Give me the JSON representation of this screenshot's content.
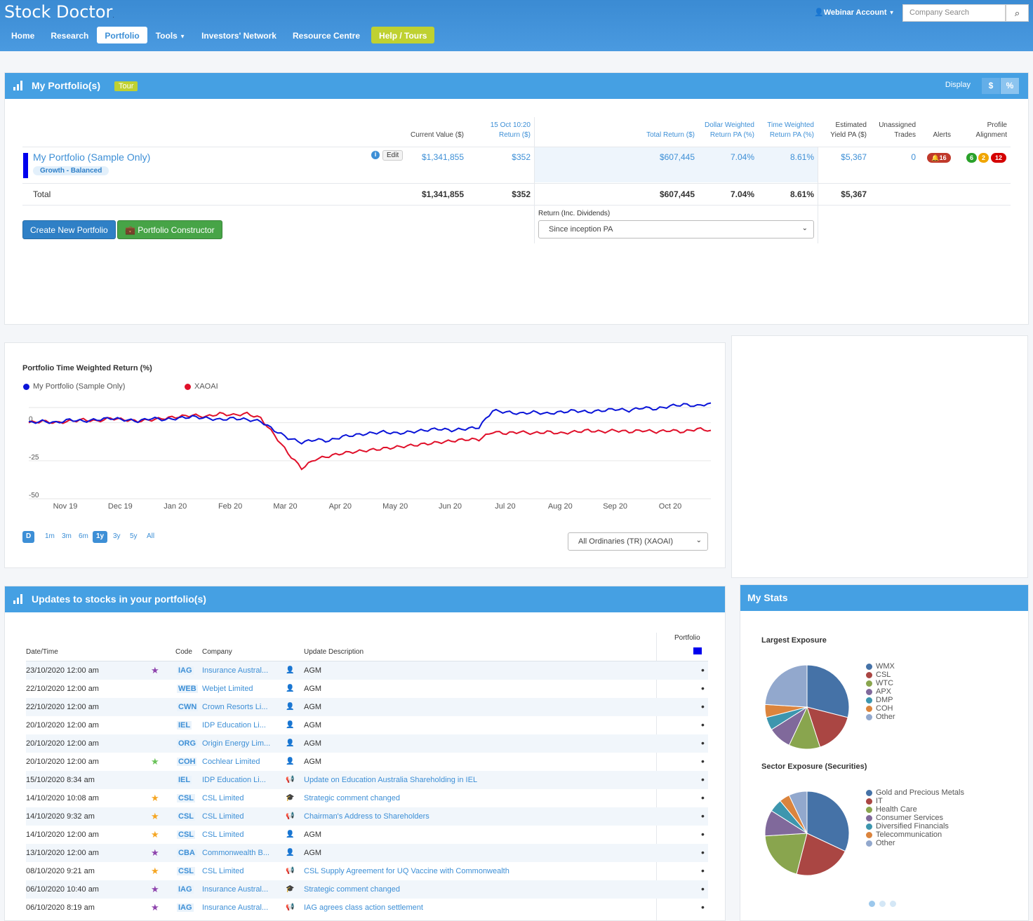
{
  "app": {
    "logo": "Stock Doctor",
    "logo_dot": "."
  },
  "nav": [
    {
      "label": "Home"
    },
    {
      "label": "Research"
    },
    {
      "label": "Portfolio",
      "active": true
    },
    {
      "label": "Tools"
    },
    {
      "label": "Investors' Network"
    },
    {
      "label": "Resource Centre"
    },
    {
      "label": "Help / Tours"
    }
  ],
  "account": "Webinar Account",
  "search": {
    "placeholder": "Company Search"
  },
  "portfolio_panel": {
    "title": "My Portfolio(s)",
    "tour": "Tour",
    "display_label": "Display",
    "display_options": [
      "$",
      "%"
    ],
    "headers": {
      "current_value": "Current Value ($)",
      "date_return_1": "15 Oct 10:20",
      "date_return_2": "Return ($)",
      "total_return": "Total Return ($)",
      "dw_1": "Dollar Weighted",
      "dw_2": "Return PA (%)",
      "tw_1": "Time Weighted",
      "tw_2": "Return PA (%)",
      "yield_1": "Estimated",
      "yield_2": "Yield PA ($)",
      "unassigned_1": "Unassigned",
      "unassigned_2": "Trades",
      "alerts": "Alerts",
      "profile_1": "Profile",
      "profile_2": "Alignment"
    },
    "row": {
      "name": "My Portfolio (Sample Only)",
      "tag": "Growth - Balanced",
      "edit": "Edit",
      "current_value": "$1,341,855",
      "day_return": "$352",
      "total_return": "$607,445",
      "dw": "7.04%",
      "tw": "8.61%",
      "yield": "$5,367",
      "unassigned": "0",
      "alerts": "16",
      "profile": [
        "6",
        "2",
        "12"
      ],
      "color": "#0000ee"
    },
    "total": {
      "label": "Total",
      "current_value": "$1,341,855",
      "day_return": "$352",
      "total_return": "$607,445",
      "dw": "7.04%",
      "tw": "8.61%",
      "yield": "$5,367"
    },
    "return_label": "Return (Inc. Dividends)",
    "return_select": "Since inception PA",
    "create_btn": "Create New Portfolio",
    "constructor_btn": "Portfolio Constructor"
  },
  "chart_panel": {
    "ranges": [
      "D",
      "1m",
      "3m",
      "6m",
      "1y",
      "3y",
      "5y",
      "All"
    ],
    "active_ranges": [
      "D",
      "1y"
    ],
    "benchmark_select": "All Ordinaries (TR) (XAOAI)"
  },
  "chart_data": {
    "type": "line",
    "title": "Portfolio Time Weighted Return (%)",
    "x_ticks": [
      "Nov 19",
      "Dec 19",
      "Jan 20",
      "Feb 20",
      "Mar 20",
      "Apr 20",
      "May 20",
      "Jun 20",
      "Jul 20",
      "Aug 20",
      "Sep 20",
      "Oct 20"
    ],
    "y_ticks": [
      "0",
      "-25",
      "-50"
    ],
    "ylim": [
      -50,
      10
    ],
    "series": [
      {
        "name": "My Portfolio (Sample Only)",
        "color": "#0a14d8",
        "values": [
          0,
          1,
          0,
          2,
          1,
          2,
          3,
          2,
          1,
          3,
          2,
          3,
          4,
          3,
          2,
          3,
          2,
          1,
          -5,
          -10,
          -13,
          -11,
          -12,
          -9,
          -8,
          -7,
          -6,
          -7,
          -6,
          -5,
          -4,
          -5,
          -4,
          -3,
          8,
          7,
          6,
          7,
          6,
          7,
          8,
          7,
          8,
          9,
          8,
          10,
          9,
          11,
          12,
          11,
          13
        ]
      },
      {
        "name": "XAOAI",
        "color": "#e0102a",
        "values": [
          0,
          1,
          0,
          1,
          2,
          1,
          3,
          2,
          1,
          2,
          3,
          4,
          5,
          4,
          6,
          5,
          6,
          3,
          -8,
          -20,
          -30,
          -24,
          -22,
          -20,
          -19,
          -18,
          -17,
          -16,
          -15,
          -14,
          -13,
          -12,
          -11,
          -11,
          -6,
          -7,
          -6,
          -7,
          -6,
          -7,
          -6,
          -5,
          -6,
          -5,
          -6,
          -5,
          -6,
          -5,
          -6,
          -4,
          -5
        ]
      }
    ]
  },
  "updates_panel": {
    "title": "Updates to stocks in your portfolio(s)",
    "headers": {
      "date": "Date/Time",
      "code": "Code",
      "company": "Company",
      "desc": "Update Description",
      "portfolio": "Portfolio"
    },
    "rows": [
      {
        "date": "23/10/2020 12:00 am",
        "star": "purple",
        "code": "IAG",
        "company": "Insurance Austral...",
        "icon": "person",
        "desc": "AGM",
        "desc_link": false
      },
      {
        "date": "22/10/2020 12:00 am",
        "star": "",
        "code": "WEB",
        "company": "Webjet Limited",
        "icon": "person",
        "desc": "AGM",
        "desc_link": false
      },
      {
        "date": "22/10/2020 12:00 am",
        "star": "",
        "code": "CWN",
        "company": "Crown Resorts Li...",
        "icon": "person",
        "desc": "AGM",
        "desc_link": false
      },
      {
        "date": "20/10/2020 12:00 am",
        "star": "",
        "code": "IEL",
        "company": "IDP Education Li...",
        "icon": "person",
        "desc": "AGM",
        "desc_link": false
      },
      {
        "date": "20/10/2020 12:00 am",
        "star": "",
        "code": "ORG",
        "company": "Origin Energy Lim...",
        "icon": "person",
        "desc": "AGM",
        "desc_link": false
      },
      {
        "date": "20/10/2020 12:00 am",
        "star": "green",
        "code": "COH",
        "company": "Cochlear Limited",
        "icon": "person",
        "desc": "AGM",
        "desc_link": false
      },
      {
        "date": "15/10/2020 8:34 am",
        "star": "",
        "code": "IEL",
        "company": "IDP Education Li...",
        "icon": "megaphone",
        "desc": "Update on Education Australia Shareholding in IEL",
        "desc_link": true
      },
      {
        "date": "14/10/2020 10:08 am",
        "star": "orange",
        "code": "CSL",
        "company": "CSL Limited",
        "icon": "cap",
        "desc": "Strategic comment changed",
        "desc_link": true
      },
      {
        "date": "14/10/2020 9:32 am",
        "star": "orange",
        "code": "CSL",
        "company": "CSL Limited",
        "icon": "megaphone",
        "desc": "Chairman's Address to Shareholders",
        "desc_link": true
      },
      {
        "date": "14/10/2020 12:00 am",
        "star": "orange",
        "code": "CSL",
        "company": "CSL Limited",
        "icon": "person",
        "desc": "AGM",
        "desc_link": false
      },
      {
        "date": "13/10/2020 12:00 am",
        "star": "purple",
        "code": "CBA",
        "company": "Commonwealth B...",
        "icon": "person",
        "desc": "AGM",
        "desc_link": false
      },
      {
        "date": "08/10/2020 9:21 am",
        "star": "orange",
        "code": "CSL",
        "company": "CSL Limited",
        "icon": "megaphone",
        "desc": "CSL Supply Agreement for UQ Vaccine with Commonwealth",
        "desc_link": true
      },
      {
        "date": "06/10/2020 10:40 am",
        "star": "purple",
        "code": "IAG",
        "company": "Insurance Austral...",
        "icon": "cap",
        "desc": "Strategic comment changed",
        "desc_link": true
      },
      {
        "date": "06/10/2020 8:19 am",
        "star": "purple",
        "code": "IAG",
        "company": "Insurance Austral...",
        "icon": "megaphone",
        "desc": "IAG agrees class action settlement",
        "desc_link": true
      }
    ]
  },
  "stats_panel": {
    "title": "My Stats",
    "largest": {
      "title": "Largest Exposure",
      "items": [
        {
          "label": "WMX",
          "color": "#4572a7",
          "value": 29
        },
        {
          "label": "CSL",
          "color": "#aa4643",
          "value": 16
        },
        {
          "label": "WTC",
          "color": "#89a54e",
          "value": 12
        },
        {
          "label": "APX",
          "color": "#80699b",
          "value": 9
        },
        {
          "label": "DMP",
          "color": "#3d96ae",
          "value": 5
        },
        {
          "label": "COH",
          "color": "#db843d",
          "value": 5
        },
        {
          "label": "Other",
          "color": "#92a8cd",
          "value": 24
        }
      ]
    },
    "sector": {
      "title": "Sector Exposure (Securities)",
      "items": [
        {
          "label": "Gold and Precious Metals",
          "color": "#4572a7",
          "value": 32
        },
        {
          "label": "IT",
          "color": "#aa4643",
          "value": 22
        },
        {
          "label": "Health Care",
          "color": "#89a54e",
          "value": 20
        },
        {
          "label": "Consumer Services",
          "color": "#80699b",
          "value": 10
        },
        {
          "label": "Diversified Financials",
          "color": "#3d96ae",
          "value": 5
        },
        {
          "label": "Telecommunication",
          "color": "#db843d",
          "value": 4
        },
        {
          "label": "Other",
          "color": "#92a8cd",
          "value": 7
        }
      ]
    }
  }
}
